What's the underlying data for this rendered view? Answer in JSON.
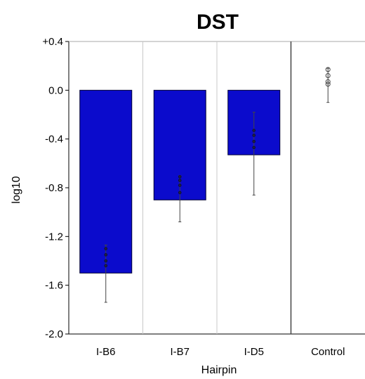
{
  "chart_data": {
    "type": "bar",
    "title": "DST",
    "xlabel": "Hairpin",
    "ylabel": "log10",
    "categories": [
      "I-B6",
      "I-B7",
      "I-D5",
      "Control"
    ],
    "values": [
      -1.5,
      -0.9,
      -0.53,
      null
    ],
    "error_low": [
      -1.74,
      -1.08,
      -0.86,
      -0.1
    ],
    "error_high": [
      -1.27,
      -0.7,
      -0.18,
      0.18
    ],
    "replicates": [
      [
        -1.3,
        -1.35,
        -1.4,
        -1.44
      ],
      [
        -0.71,
        -0.74,
        -0.78,
        -0.84
      ],
      [
        -0.33,
        -0.37,
        -0.42,
        -0.47
      ],
      [
        0.17,
        0.12,
        0.07,
        0.05
      ]
    ],
    "ylim": [
      -2.0,
      0.4
    ],
    "yticks": [
      {
        "value": 0.4,
        "label": "+0.4"
      },
      {
        "value": 0.0,
        "label": "0.0"
      },
      {
        "value": -0.4,
        "label": "-0.4"
      },
      {
        "value": -0.8,
        "label": "-0.8"
      },
      {
        "value": -1.2,
        "label": "-1.2"
      },
      {
        "value": -1.6,
        "label": "-1.6"
      },
      {
        "value": -2.0,
        "label": "-2.0"
      }
    ],
    "bar_color": "#0b0bcc",
    "grid": false
  }
}
